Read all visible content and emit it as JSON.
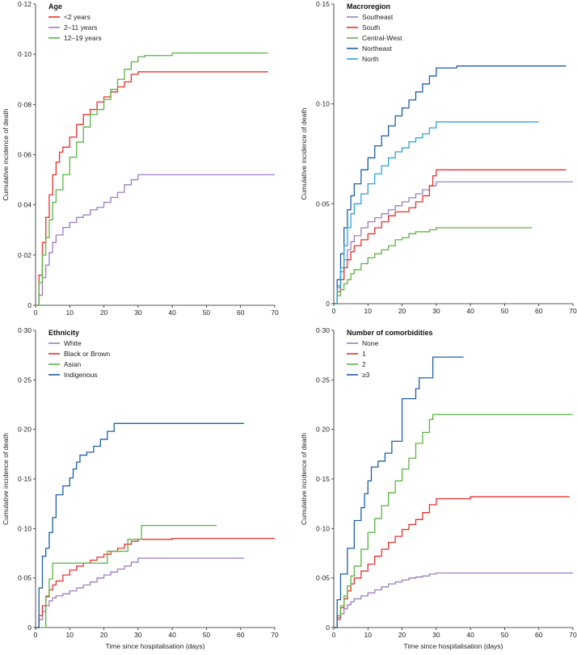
{
  "chart_data": [
    {
      "type": "line",
      "title": "Age",
      "xlabel": "",
      "ylabel": "Cumulative incidence of death",
      "xlim": [
        0,
        70
      ],
      "ylim": [
        0,
        0.12
      ],
      "xticks": [
        0,
        10,
        20,
        30,
        40,
        50,
        60,
        70
      ],
      "xtick_labels": [
        "0",
        "10",
        "20",
        "30",
        "40",
        "50",
        "60",
        "70"
      ],
      "yticks": [
        0,
        0.02,
        0.04,
        0.06,
        0.08,
        0.1,
        0.12
      ],
      "ytick_labels": [
        "0",
        "0·02",
        "0·04",
        "0·06",
        "0·08",
        "0·10",
        "0·12"
      ],
      "legend_position": "top-left",
      "series": [
        {
          "name": "<2 years",
          "color": "#e8312e",
          "x": [
            0,
            1,
            2,
            3,
            4,
            5,
            6,
            7,
            8,
            10,
            12,
            14,
            16,
            18,
            20,
            22,
            24,
            26,
            28,
            30,
            68
          ],
          "y": [
            0,
            0.012,
            0.025,
            0.035,
            0.044,
            0.052,
            0.057,
            0.061,
            0.063,
            0.067,
            0.072,
            0.076,
            0.078,
            0.081,
            0.083,
            0.085,
            0.087,
            0.089,
            0.092,
            0.093,
            0.093
          ]
        },
        {
          "name": "2–11 years",
          "color": "#9b7ec4",
          "x": [
            0,
            1,
            2,
            3,
            4,
            5,
            6,
            8,
            10,
            12,
            14,
            16,
            18,
            20,
            22,
            24,
            26,
            28,
            30,
            70
          ],
          "y": [
            0,
            0.004,
            0.011,
            0.016,
            0.021,
            0.025,
            0.028,
            0.031,
            0.033,
            0.035,
            0.036,
            0.038,
            0.039,
            0.041,
            0.043,
            0.045,
            0.048,
            0.05,
            0.052,
            0.052
          ]
        },
        {
          "name": "12–19 years",
          "color": "#5bb445",
          "x": [
            0,
            1,
            2,
            3,
            4,
            5,
            6,
            8,
            10,
            12,
            14,
            16,
            18,
            20,
            22,
            24,
            26,
            28,
            30,
            32,
            40,
            68
          ],
          "y": [
            0,
            0.009,
            0.02,
            0.027,
            0.034,
            0.041,
            0.046,
            0.052,
            0.059,
            0.065,
            0.071,
            0.076,
            0.078,
            0.082,
            0.086,
            0.09,
            0.094,
            0.097,
            0.099,
            0.0995,
            0.1005,
            0.1005
          ]
        }
      ]
    },
    {
      "type": "line",
      "title": "Macroregion",
      "xlabel": "",
      "ylabel": "Cumulative incidence of death",
      "xlim": [
        0,
        70
      ],
      "ylim": [
        0,
        0.15
      ],
      "xticks": [
        0,
        10,
        20,
        30,
        40,
        50,
        60,
        70
      ],
      "xtick_labels": [
        "0",
        "10",
        "20",
        "30",
        "40",
        "50",
        "60",
        "70"
      ],
      "yticks": [
        0,
        0.05,
        0.1,
        0.15
      ],
      "ytick_labels": [
        "0",
        "0·05",
        "0·10",
        "0·15"
      ],
      "legend_position": "top-left",
      "series": [
        {
          "name": "Southeast",
          "color": "#9b7ec4",
          "x": [
            0,
            1,
            2,
            3,
            4,
            5,
            6,
            8,
            10,
            12,
            14,
            16,
            18,
            20,
            22,
            24,
            26,
            28,
            30,
            70
          ],
          "y": [
            0,
            0.009,
            0.016,
            0.022,
            0.027,
            0.031,
            0.034,
            0.038,
            0.041,
            0.043,
            0.045,
            0.047,
            0.049,
            0.051,
            0.053,
            0.055,
            0.057,
            0.059,
            0.061,
            0.061
          ]
        },
        {
          "name": "South",
          "color": "#e8312e",
          "x": [
            0,
            1,
            2,
            3,
            4,
            5,
            6,
            8,
            10,
            12,
            14,
            16,
            18,
            20,
            22,
            24,
            26,
            28,
            29,
            30,
            68
          ],
          "y": [
            0,
            0.006,
            0.012,
            0.018,
            0.022,
            0.026,
            0.029,
            0.032,
            0.035,
            0.038,
            0.041,
            0.044,
            0.046,
            0.046,
            0.048,
            0.051,
            0.054,
            0.059,
            0.064,
            0.067,
            0.067
          ]
        },
        {
          "name": "Central-West",
          "color": "#5bb445",
          "x": [
            0,
            1,
            2,
            3,
            4,
            5,
            6,
            8,
            10,
            12,
            14,
            16,
            18,
            20,
            22,
            24,
            26,
            28,
            30,
            58
          ],
          "y": [
            0,
            0.004,
            0.007,
            0.01,
            0.012,
            0.015,
            0.017,
            0.02,
            0.023,
            0.025,
            0.027,
            0.029,
            0.032,
            0.033,
            0.035,
            0.036,
            0.036,
            0.037,
            0.038,
            0.038
          ]
        },
        {
          "name": "Northeast",
          "color": "#1f5fa6",
          "x": [
            0,
            1,
            2,
            3,
            4,
            5,
            6,
            8,
            10,
            12,
            14,
            16,
            18,
            20,
            22,
            24,
            26,
            28,
            30,
            36,
            68
          ],
          "y": [
            0,
            0.012,
            0.025,
            0.038,
            0.047,
            0.054,
            0.06,
            0.067,
            0.073,
            0.079,
            0.084,
            0.089,
            0.094,
            0.098,
            0.102,
            0.106,
            0.11,
            0.114,
            0.118,
            0.119,
            0.119
          ]
        },
        {
          "name": "North",
          "color": "#2aa5d8",
          "x": [
            0,
            1,
            2,
            3,
            4,
            5,
            6,
            8,
            10,
            12,
            14,
            16,
            18,
            20,
            22,
            24,
            26,
            28,
            30,
            60
          ],
          "y": [
            0,
            0.008,
            0.018,
            0.029,
            0.038,
            0.045,
            0.05,
            0.055,
            0.06,
            0.065,
            0.069,
            0.073,
            0.076,
            0.078,
            0.081,
            0.083,
            0.085,
            0.088,
            0.091,
            0.091
          ]
        }
      ]
    },
    {
      "type": "line",
      "title": "Ethnicity",
      "xlabel": "Time since hospitalisation (days)",
      "ylabel": "Cumulative incidence of death",
      "xlim": [
        0,
        70
      ],
      "ylim": [
        0,
        0.3
      ],
      "xticks": [
        0,
        10,
        20,
        30,
        40,
        50,
        60,
        70
      ],
      "xtick_labels": [
        "0",
        "10",
        "20",
        "30",
        "40",
        "50",
        "60",
        "70"
      ],
      "yticks": [
        0,
        0.05,
        0.1,
        0.15,
        0.2,
        0.25,
        0.3
      ],
      "ytick_labels": [
        "0",
        "0·05",
        "0·10",
        "0·15",
        "0·20",
        "0·25",
        "0·30"
      ],
      "legend_position": "top-left",
      "series": [
        {
          "name": "White",
          "color": "#9b7ec4",
          "x": [
            0,
            1,
            2,
            3,
            4,
            5,
            6,
            8,
            10,
            12,
            14,
            16,
            18,
            20,
            22,
            24,
            26,
            28,
            30,
            61
          ],
          "y": [
            0,
            0.008,
            0.016,
            0.022,
            0.027,
            0.03,
            0.032,
            0.034,
            0.037,
            0.04,
            0.043,
            0.046,
            0.05,
            0.053,
            0.056,
            0.059,
            0.062,
            0.066,
            0.07,
            0.07
          ]
        },
        {
          "name": "Black or Brown",
          "color": "#e8312e",
          "x": [
            0,
            1,
            2,
            3,
            4,
            5,
            6,
            8,
            10,
            12,
            14,
            16,
            18,
            20,
            22,
            24,
            26,
            28,
            30,
            40,
            70
          ],
          "y": [
            0,
            0.012,
            0.022,
            0.031,
            0.038,
            0.043,
            0.047,
            0.053,
            0.058,
            0.062,
            0.065,
            0.068,
            0.071,
            0.074,
            0.077,
            0.08,
            0.084,
            0.087,
            0.089,
            0.09,
            0.09
          ]
        },
        {
          "name": "Asian",
          "color": "#5bb445",
          "x": [
            0,
            3,
            4,
            5,
            21,
            27,
            31,
            53
          ],
          "y": [
            0,
            0.032,
            0.049,
            0.065,
            0.077,
            0.089,
            0.103,
            0.103
          ]
        },
        {
          "name": "Indigenous",
          "color": "#1f5fa6",
          "x": [
            0,
            1,
            2,
            3,
            4,
            5,
            6,
            8,
            10,
            11,
            12,
            13,
            15,
            17,
            19,
            21,
            23,
            61
          ],
          "y": [
            0,
            0.04,
            0.072,
            0.08,
            0.096,
            0.111,
            0.134,
            0.143,
            0.151,
            0.16,
            0.167,
            0.174,
            0.177,
            0.183,
            0.19,
            0.198,
            0.206,
            0.206
          ]
        }
      ]
    },
    {
      "type": "line",
      "title": "Number of comorbidities",
      "xlabel": "Time since hospitalisation (days)",
      "ylabel": "Cumulative incidence of death",
      "xlim": [
        0,
        70
      ],
      "ylim": [
        0,
        0.3
      ],
      "xticks": [
        0,
        10,
        20,
        30,
        40,
        50,
        60,
        70
      ],
      "xtick_labels": [
        "0",
        "10",
        "20",
        "30",
        "40",
        "50",
        "60",
        "70"
      ],
      "yticks": [
        0,
        0.05,
        0.1,
        0.15,
        0.2,
        0.25,
        0.3
      ],
      "ytick_labels": [
        "0",
        "0·05",
        "0·10",
        "0·15",
        "0·20",
        "0·25",
        "0·30"
      ],
      "legend_position": "top-left",
      "series": [
        {
          "name": "None",
          "color": "#9b7ec4",
          "x": [
            0,
            1,
            2,
            3,
            4,
            5,
            6,
            8,
            10,
            12,
            14,
            16,
            18,
            20,
            22,
            24,
            26,
            28,
            30,
            70
          ],
          "y": [
            0,
            0.008,
            0.014,
            0.019,
            0.023,
            0.026,
            0.029,
            0.032,
            0.035,
            0.038,
            0.041,
            0.044,
            0.046,
            0.048,
            0.05,
            0.051,
            0.052,
            0.054,
            0.055,
            0.055
          ]
        },
        {
          "name": "1",
          "color": "#e8312e",
          "x": [
            0,
            1,
            2,
            3,
            4,
            5,
            6,
            8,
            10,
            12,
            14,
            16,
            18,
            20,
            22,
            24,
            26,
            28,
            30,
            40,
            69
          ],
          "y": [
            0,
            0.01,
            0.02,
            0.029,
            0.037,
            0.044,
            0.05,
            0.057,
            0.064,
            0.072,
            0.079,
            0.086,
            0.092,
            0.099,
            0.104,
            0.109,
            0.116,
            0.124,
            0.13,
            0.132,
            0.132
          ]
        },
        {
          "name": "2",
          "color": "#5bb445",
          "x": [
            0,
            1,
            2,
            3,
            4,
            5,
            6,
            8,
            10,
            12,
            14,
            16,
            18,
            20,
            22,
            24,
            26,
            28,
            29,
            70
          ],
          "y": [
            0,
            0.012,
            0.022,
            0.032,
            0.042,
            0.052,
            0.062,
            0.079,
            0.096,
            0.11,
            0.123,
            0.136,
            0.148,
            0.16,
            0.171,
            0.186,
            0.197,
            0.21,
            0.215,
            0.215
          ]
        },
        {
          "name": "≥3",
          "color": "#1f5fa6",
          "x": [
            0,
            1,
            2,
            4,
            6,
            8,
            9,
            10,
            11,
            13,
            15,
            17,
            20,
            24,
            25,
            29,
            38
          ],
          "y": [
            0,
            0.028,
            0.054,
            0.08,
            0.108,
            0.121,
            0.135,
            0.148,
            0.162,
            0.168,
            0.176,
            0.188,
            0.231,
            0.241,
            0.252,
            0.273,
            0.273
          ]
        }
      ]
    }
  ]
}
